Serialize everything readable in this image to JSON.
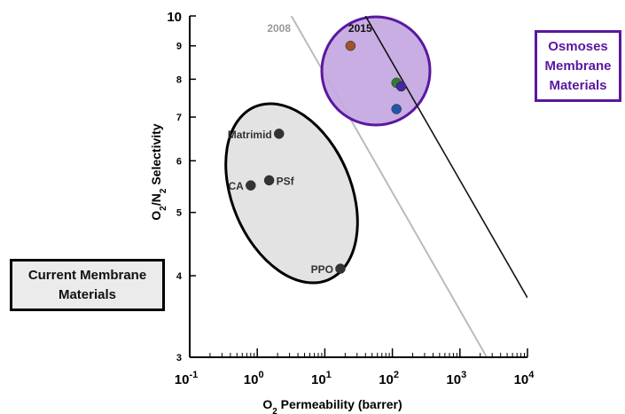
{
  "chart_data": {
    "type": "scatter",
    "title": "",
    "xlabel": "O2 Permeability (barrer)",
    "ylabel": "O2/N2 Selectivity",
    "x_scale": "log",
    "y_scale": "log",
    "xlim": [
      0.1,
      10000
    ],
    "ylim": [
      3,
      10
    ],
    "x_ticks": [
      {
        "value": 0.1,
        "base": "10",
        "exp": "-1"
      },
      {
        "value": 1,
        "base": "10",
        "exp": "0"
      },
      {
        "value": 10,
        "base": "10",
        "exp": "1"
      },
      {
        "value": 100,
        "base": "10",
        "exp": "2"
      },
      {
        "value": 1000,
        "base": "10",
        "exp": "3"
      },
      {
        "value": 10000,
        "base": "10",
        "exp": "4"
      }
    ],
    "y_ticks": [
      {
        "value": 3,
        "label": "3"
      },
      {
        "value": 4,
        "label": "4"
      },
      {
        "value": 5,
        "label": "5"
      },
      {
        "value": 6,
        "label": "6"
      },
      {
        "value": 7,
        "label": "7"
      },
      {
        "value": 8,
        "label": "8"
      },
      {
        "value": 9,
        "label": "9"
      },
      {
        "value": 10,
        "label": "10"
      }
    ],
    "grid": false,
    "upper_bounds": [
      {
        "label": "2008",
        "color": "#bbbbbb",
        "points": [
          [
            3.2,
            10
          ],
          [
            2500,
            3
          ]
        ]
      },
      {
        "label": "2015",
        "color": "#111111",
        "points": [
          [
            40,
            10
          ],
          [
            10000,
            3.7
          ]
        ]
      }
    ],
    "series": [
      {
        "color": "#333333",
        "points": [
          {
            "x": 2.1,
            "y": 6.6,
            "label": "Matrimid"
          },
          {
            "x": 1.5,
            "y": 5.6,
            "label": "PSf"
          },
          {
            "x": 0.8,
            "y": 5.5,
            "label": "CA"
          },
          {
            "x": 17,
            "y": 4.1,
            "label": "PPO"
          }
        ]
      },
      {
        "points": [
          {
            "x": 24,
            "y": 9.0,
            "color": "#a0522d"
          },
          {
            "x": 115,
            "y": 7.9,
            "color": "#2e7d32"
          },
          {
            "x": 135,
            "y": 7.8,
            "color": "#4527a0"
          },
          {
            "x": 115,
            "y": 7.2,
            "color": "#2456a5"
          }
        ]
      }
    ],
    "regions": [
      {
        "name": "current-materials-region",
        "fill": "#e3e3e3",
        "stroke": "#000000"
      },
      {
        "name": "osmoses-materials-region",
        "fill": "#c3a7e0",
        "stroke": "#5a18a0"
      }
    ],
    "callouts": {
      "current": "Current Membrane\nMaterials",
      "osmoses": "Osmoses\nMembrane\nMaterials"
    }
  }
}
